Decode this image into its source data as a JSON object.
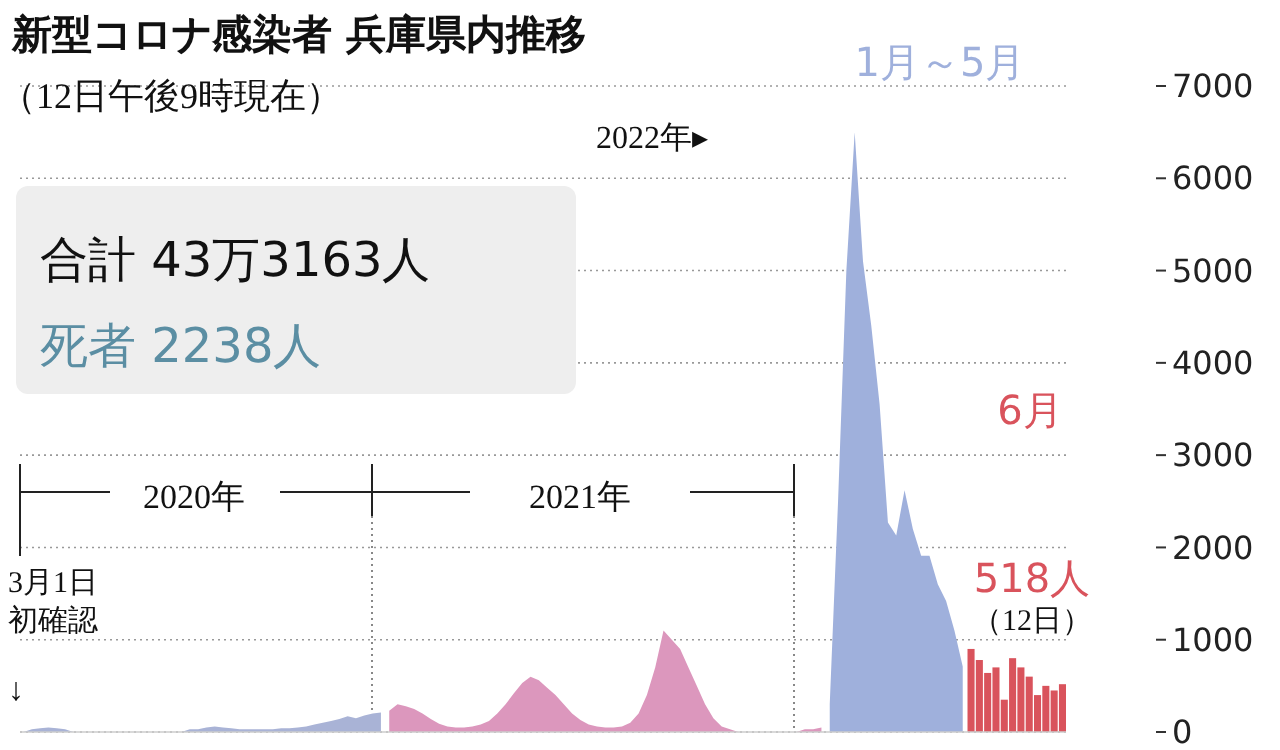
{
  "chart_data": {
    "type": "area",
    "title": "新型コロナ感染者 兵庫県内推移",
    "subtitle": "（12日午後9時現在）",
    "categories": [
      null,
      null,
      null,
      null,
      null,
      null,
      null,
      null,
      null,
      null,
      null,
      null,
      null,
      null,
      null,
      null,
      null,
      null,
      null,
      null,
      null,
      null,
      null,
      null,
      null,
      null,
      null,
      null,
      null,
      null,
      null,
      null,
      null,
      null,
      null,
      null,
      null,
      null,
      null,
      null,
      null,
      null,
      null,
      null,
      null,
      null,
      null,
      null,
      null,
      null,
      null,
      null,
      null,
      null,
      null,
      null,
      null,
      null,
      null,
      null,
      null,
      null,
      null,
      null,
      null,
      null,
      null,
      null,
      null,
      null,
      null,
      null,
      null,
      null,
      null,
      null,
      null,
      null,
      null,
      null,
      null,
      null,
      null,
      null,
      null,
      null,
      null,
      null,
      null,
      null,
      null,
      null,
      null,
      null,
      null,
      null,
      null,
      null,
      null,
      null,
      null,
      null,
      null,
      null,
      null,
      null,
      null,
      null,
      null,
      null,
      null,
      null,
      null,
      null,
      null,
      null,
      null,
      null,
      null,
      null,
      null,
      null,
      null,
      null,
      null,
      null
    ],
    "series": [
      {
        "color": "#a9b3d6",
        "values": [
          0,
          30,
          40,
          50,
          40,
          30,
          0,
          0,
          0,
          0,
          0,
          0,
          0,
          0,
          0,
          0,
          0,
          0,
          0,
          0,
          30,
          30,
          50,
          60,
          50,
          40,
          30,
          30,
          30,
          30,
          30,
          40,
          40,
          50,
          60,
          80,
          100,
          120,
          140,
          170,
          150,
          180,
          200,
          210,
          null,
          null,
          null,
          null,
          null,
          null,
          null,
          null,
          null,
          null,
          null,
          null,
          null,
          null,
          null,
          null,
          null,
          null,
          null,
          null,
          null,
          null,
          null,
          null,
          null,
          null,
          null,
          null,
          null,
          null,
          null,
          null,
          null,
          null,
          null,
          null,
          null,
          null,
          null,
          null,
          null,
          null,
          null,
          null,
          null,
          null,
          null,
          null,
          null,
          null,
          null,
          null,
          null,
          null,
          null,
          null,
          null,
          null,
          null,
          null,
          null,
          null,
          null,
          null,
          null,
          null,
          null,
          null,
          null,
          null,
          null,
          null,
          null,
          null,
          null,
          null,
          null,
          null,
          null,
          null,
          null,
          null
        ]
      },
      {
        "color": "#dc97bd",
        "values": [
          null,
          null,
          null,
          null,
          null,
          null,
          null,
          null,
          null,
          null,
          null,
          null,
          null,
          null,
          null,
          null,
          null,
          null,
          null,
          null,
          null,
          null,
          null,
          null,
          null,
          null,
          null,
          null,
          null,
          null,
          null,
          null,
          null,
          null,
          null,
          null,
          null,
          null,
          null,
          null,
          null,
          null,
          null,
          null,
          230,
          300,
          280,
          250,
          200,
          140,
          90,
          60,
          50,
          50,
          60,
          80,
          120,
          200,
          300,
          420,
          530,
          600,
          560,
          480,
          400,
          300,
          200,
          130,
          80,
          60,
          50,
          50,
          60,
          100,
          200,
          400,
          700,
          1100,
          1000,
          900,
          700,
          500,
          300,
          150,
          60,
          30,
          0,
          0,
          0,
          0,
          0,
          0,
          0,
          0,
          30,
          30,
          50,
          null,
          null,
          null,
          null,
          null,
          null,
          null,
          null,
          null,
          null,
          null,
          null,
          null,
          null,
          null,
          null,
          null,
          null,
          null,
          null,
          null,
          null,
          null,
          null,
          null,
          null,
          null,
          null,
          null
        ]
      },
      {
        "color": "#9fb0dc",
        "values": [
          null,
          null,
          null,
          null,
          null,
          null,
          null,
          null,
          null,
          null,
          null,
          null,
          null,
          null,
          null,
          null,
          null,
          null,
          null,
          null,
          null,
          null,
          null,
          null,
          null,
          null,
          null,
          null,
          null,
          null,
          null,
          null,
          null,
          null,
          null,
          null,
          null,
          null,
          null,
          null,
          null,
          null,
          null,
          null,
          null,
          null,
          null,
          null,
          null,
          null,
          null,
          null,
          null,
          null,
          null,
          null,
          null,
          null,
          null,
          null,
          null,
          null,
          null,
          null,
          null,
          null,
          null,
          null,
          null,
          null,
          null,
          null,
          null,
          null,
          null,
          null,
          null,
          null,
          null,
          null,
          null,
          null,
          null,
          null,
          null,
          null,
          null,
          null,
          null,
          null,
          null,
          null,
          null,
          null,
          null,
          null,
          null,
          300,
          2500,
          5000,
          6500,
          5100,
          4400,
          3550,
          2270,
          2130,
          2620,
          2200,
          1910,
          1910,
          1600,
          1420,
          1100,
          710,
          null,
          null,
          null,
          null,
          null,
          null,
          null,
          null,
          null,
          null,
          null,
          null
        ]
      },
      {
        "type": "bar",
        "color": "#d9535c",
        "values": [
          null,
          null,
          null,
          null,
          null,
          null,
          null,
          null,
          null,
          null,
          null,
          null,
          null,
          null,
          null,
          null,
          null,
          null,
          null,
          null,
          null,
          null,
          null,
          null,
          null,
          null,
          null,
          null,
          null,
          null,
          null,
          null,
          null,
          null,
          null,
          null,
          null,
          null,
          null,
          null,
          null,
          null,
          null,
          null,
          null,
          null,
          null,
          null,
          null,
          null,
          null,
          null,
          null,
          null,
          null,
          null,
          null,
          null,
          null,
          null,
          null,
          null,
          null,
          null,
          null,
          null,
          null,
          null,
          null,
          null,
          null,
          null,
          null,
          null,
          null,
          null,
          null,
          null,
          null,
          null,
          null,
          null,
          null,
          null,
          null,
          null,
          null,
          null,
          null,
          null,
          null,
          null,
          null,
          null,
          null,
          null,
          null,
          null,
          null,
          null,
          null,
          null,
          null,
          null,
          null,
          null,
          null,
          null,
          null,
          null,
          null,
          null,
          null,
          null,
          900,
          780,
          640,
          700,
          350,
          800,
          700,
          600,
          400,
          500,
          450,
          518
        ]
      }
    ],
    "ylim": [
      0,
      7000
    ],
    "yticks": [
      0,
      1000,
      2000,
      3000,
      4000,
      5000,
      6000,
      7000
    ],
    "grid": "y",
    "annotations": [
      "合計 43万3163人",
      "死者 2238人",
      "2020年",
      "2021年",
      "2022年▸",
      "3月1日",
      "初確認",
      "↓",
      "1月～5月",
      "6月",
      "518人",
      "（12日）"
    ]
  }
}
